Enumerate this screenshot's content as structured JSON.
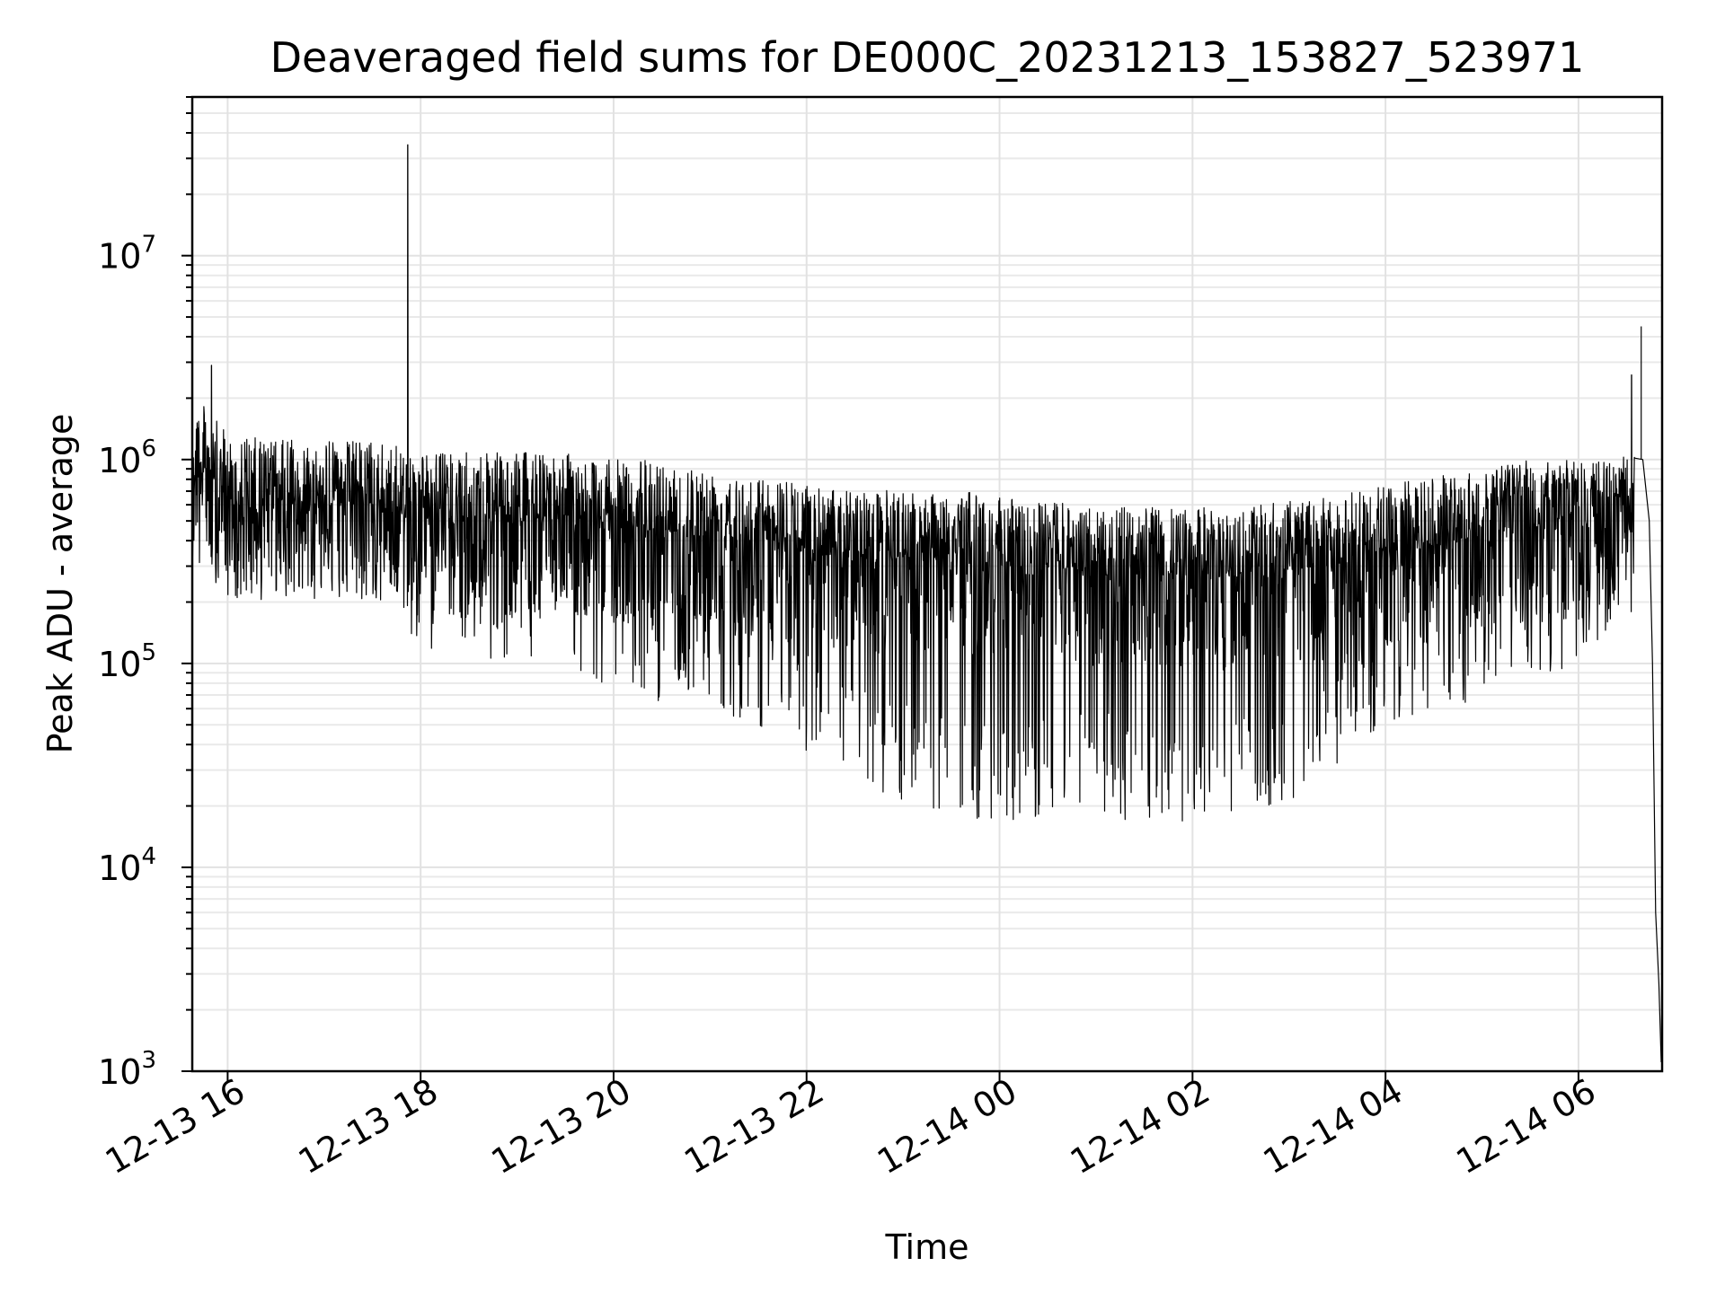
{
  "chart_data": {
    "type": "line",
    "title": "Deaveraged field sums for DE000C_20231213_153827_523971",
    "xlabel": "Time",
    "ylabel": "Peak ADU - average",
    "yscale": "log",
    "ylim": [
      1000,
      60000000
    ],
    "xlim": [
      "2023-12-13T15:38",
      "2023-12-14T06:52"
    ],
    "grid": true,
    "grid_color": "#e2e2e2",
    "line_color": "#000000",
    "x_ticks": [
      {
        "value": "2023-12-13T16:00",
        "label": "12-13 16"
      },
      {
        "value": "2023-12-13T18:00",
        "label": "12-13 18"
      },
      {
        "value": "2023-12-13T20:00",
        "label": "12-13 20"
      },
      {
        "value": "2023-12-13T22:00",
        "label": "12-13 22"
      },
      {
        "value": "2023-12-14T00:00",
        "label": "12-14 00"
      },
      {
        "value": "2023-12-14T02:00",
        "label": "12-14 02"
      },
      {
        "value": "2023-12-14T04:00",
        "label": "12-14 04"
      },
      {
        "value": "2023-12-14T06:00",
        "label": "12-14 06"
      }
    ],
    "y_ticks": [
      {
        "value": 1000,
        "base": "10",
        "exp": "3"
      },
      {
        "value": 10000,
        "base": "10",
        "exp": "4"
      },
      {
        "value": 100000,
        "base": "10",
        "exp": "5"
      },
      {
        "value": 1000000,
        "base": "10",
        "exp": "6"
      },
      {
        "value": 10000000,
        "base": "10",
        "exp": "7"
      }
    ],
    "series": [
      {
        "points": [
          {
            "x": "2023-12-13T15:40",
            "y_high": 2500000,
            "y_low": 180000
          },
          {
            "x": "2023-12-13T16:00",
            "y_high": 1600000,
            "y_low": 200000
          },
          {
            "x": "2023-12-13T16:30",
            "y_high": 1500000,
            "y_low": 250000
          },
          {
            "x": "2023-12-13T17:00",
            "y_high": 1500000,
            "y_low": 230000
          },
          {
            "x": "2023-12-13T17:30",
            "y_high": 1500000,
            "y_low": 200000
          },
          {
            "x": "2023-12-13T18:00",
            "y_high": 1300000,
            "y_low": 120000
          },
          {
            "x": "2023-12-13T18:30",
            "y_high": 1300000,
            "y_low": 110000
          },
          {
            "x": "2023-12-13T19:00",
            "y_high": 1300000,
            "y_low": 100000
          },
          {
            "x": "2023-12-13T19:30",
            "y_high": 1300000,
            "y_low": 90000
          },
          {
            "x": "2023-12-13T20:00",
            "y_high": 1200000,
            "y_low": 70000
          },
          {
            "x": "2023-12-13T20:30",
            "y_high": 1200000,
            "y_low": 65000
          },
          {
            "x": "2023-12-13T21:00",
            "y_high": 1100000,
            "y_low": 60000
          },
          {
            "x": "2023-12-13T21:30",
            "y_high": 1000000,
            "y_low": 50000
          },
          {
            "x": "2023-12-13T22:00",
            "y_high": 900000,
            "y_low": 35000
          },
          {
            "x": "2023-12-13T22:30",
            "y_high": 850000,
            "y_low": 25000
          },
          {
            "x": "2023-12-13T23:00",
            "y_high": 850000,
            "y_low": 20000
          },
          {
            "x": "2023-12-13T23:30",
            "y_high": 850000,
            "y_low": 18000
          },
          {
            "x": "2023-12-14T00:00",
            "y_high": 800000,
            "y_low": 16000
          },
          {
            "x": "2023-12-14T00:30",
            "y_high": 750000,
            "y_low": 17000
          },
          {
            "x": "2023-12-14T01:00",
            "y_high": 700000,
            "y_low": 20000
          },
          {
            "x": "2023-12-14T01:30",
            "y_high": 700000,
            "y_low": 14000
          },
          {
            "x": "2023-12-14T02:00",
            "y_high": 700000,
            "y_low": 17000
          },
          {
            "x": "2023-12-14T02:30",
            "y_high": 700000,
            "y_low": 18000
          },
          {
            "x": "2023-12-14T03:00",
            "y_high": 750000,
            "y_low": 20000
          },
          {
            "x": "2023-12-14T03:30",
            "y_high": 800000,
            "y_low": 30000
          },
          {
            "x": "2023-12-14T04:00",
            "y_high": 900000,
            "y_low": 50000
          },
          {
            "x": "2023-12-14T04:30",
            "y_high": 1000000,
            "y_low": 60000
          },
          {
            "x": "2023-12-14T05:00",
            "y_high": 1100000,
            "y_low": 65000
          },
          {
            "x": "2023-12-14T05:30",
            "y_high": 1200000,
            "y_low": 80000
          },
          {
            "x": "2023-12-14T06:00",
            "y_high": 1200000,
            "y_low": 100000
          },
          {
            "x": "2023-12-14T06:20",
            "y_high": 1200000,
            "y_low": 150000
          },
          {
            "x": "2023-12-14T06:35",
            "y_high": 1300000,
            "y_low": 400000
          }
        ],
        "spikes": [
          {
            "x": "2023-12-13T17:52",
            "y": 35000000
          },
          {
            "x": "2023-12-14T06:39",
            "y": 4500000
          },
          {
            "x": "2023-12-14T06:33",
            "y": 2600000
          },
          {
            "x": "2023-12-13T15:50",
            "y": 2900000
          }
        ],
        "tail": [
          {
            "x": "2023-12-14T06:40",
            "y": 1000000
          },
          {
            "x": "2023-12-14T06:44",
            "y": 500000
          },
          {
            "x": "2023-12-14T06:46",
            "y": 100000
          },
          {
            "x": "2023-12-14T06:48",
            "y": 6000
          },
          {
            "x": "2023-12-14T06:50",
            "y": 2700
          }
        ]
      }
    ]
  }
}
